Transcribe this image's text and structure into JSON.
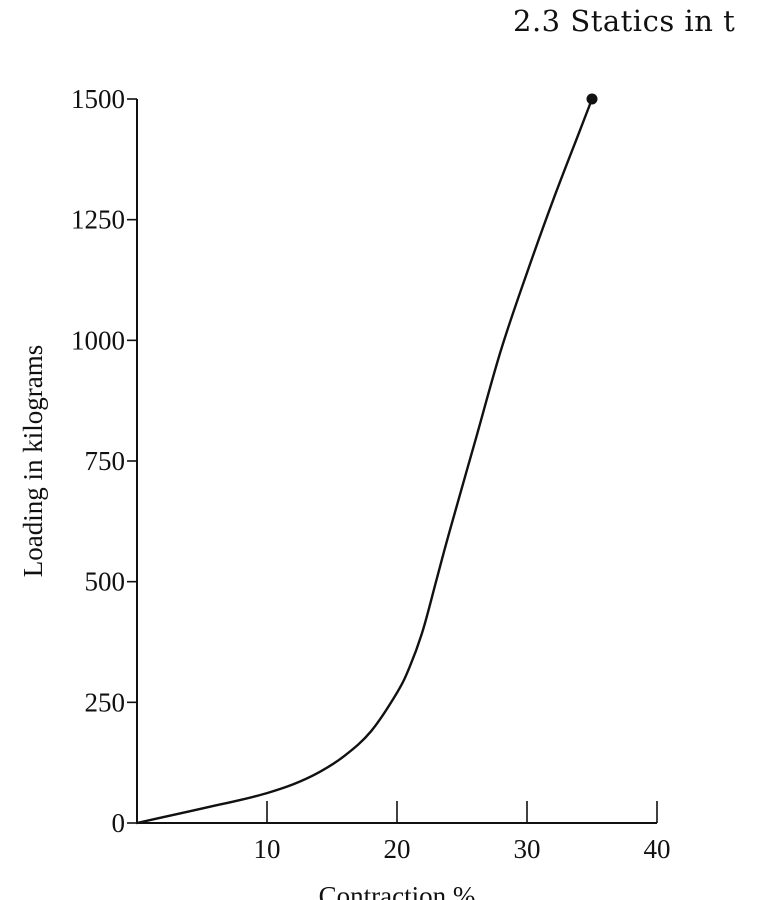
{
  "page": {
    "running_head": "2.3 Statics in t"
  },
  "chart_data": {
    "type": "line",
    "title": "",
    "xlabel": "Contraction %",
    "ylabel": "Loading in kilograms",
    "xlim": [
      0,
      40
    ],
    "ylim": [
      0,
      1500
    ],
    "xticks": [
      10,
      20,
      30,
      40
    ],
    "yticks": [
      0,
      250,
      500,
      750,
      1000,
      1250,
      1500
    ],
    "grid": false,
    "legend": "none",
    "series": [
      {
        "x": [
          0,
          2,
          4,
          6,
          8,
          10,
          12,
          14,
          16,
          18,
          20,
          21,
          22,
          23,
          24,
          26,
          28,
          30,
          32,
          34,
          35
        ],
        "values": [
          0,
          12,
          24,
          36,
          48,
          62,
          80,
          105,
          140,
          190,
          270,
          325,
          400,
          500,
          600,
          790,
          980,
          1140,
          1290,
          1430,
          1500
        ],
        "color": "#111111",
        "endpoint_marker": true
      }
    ]
  }
}
